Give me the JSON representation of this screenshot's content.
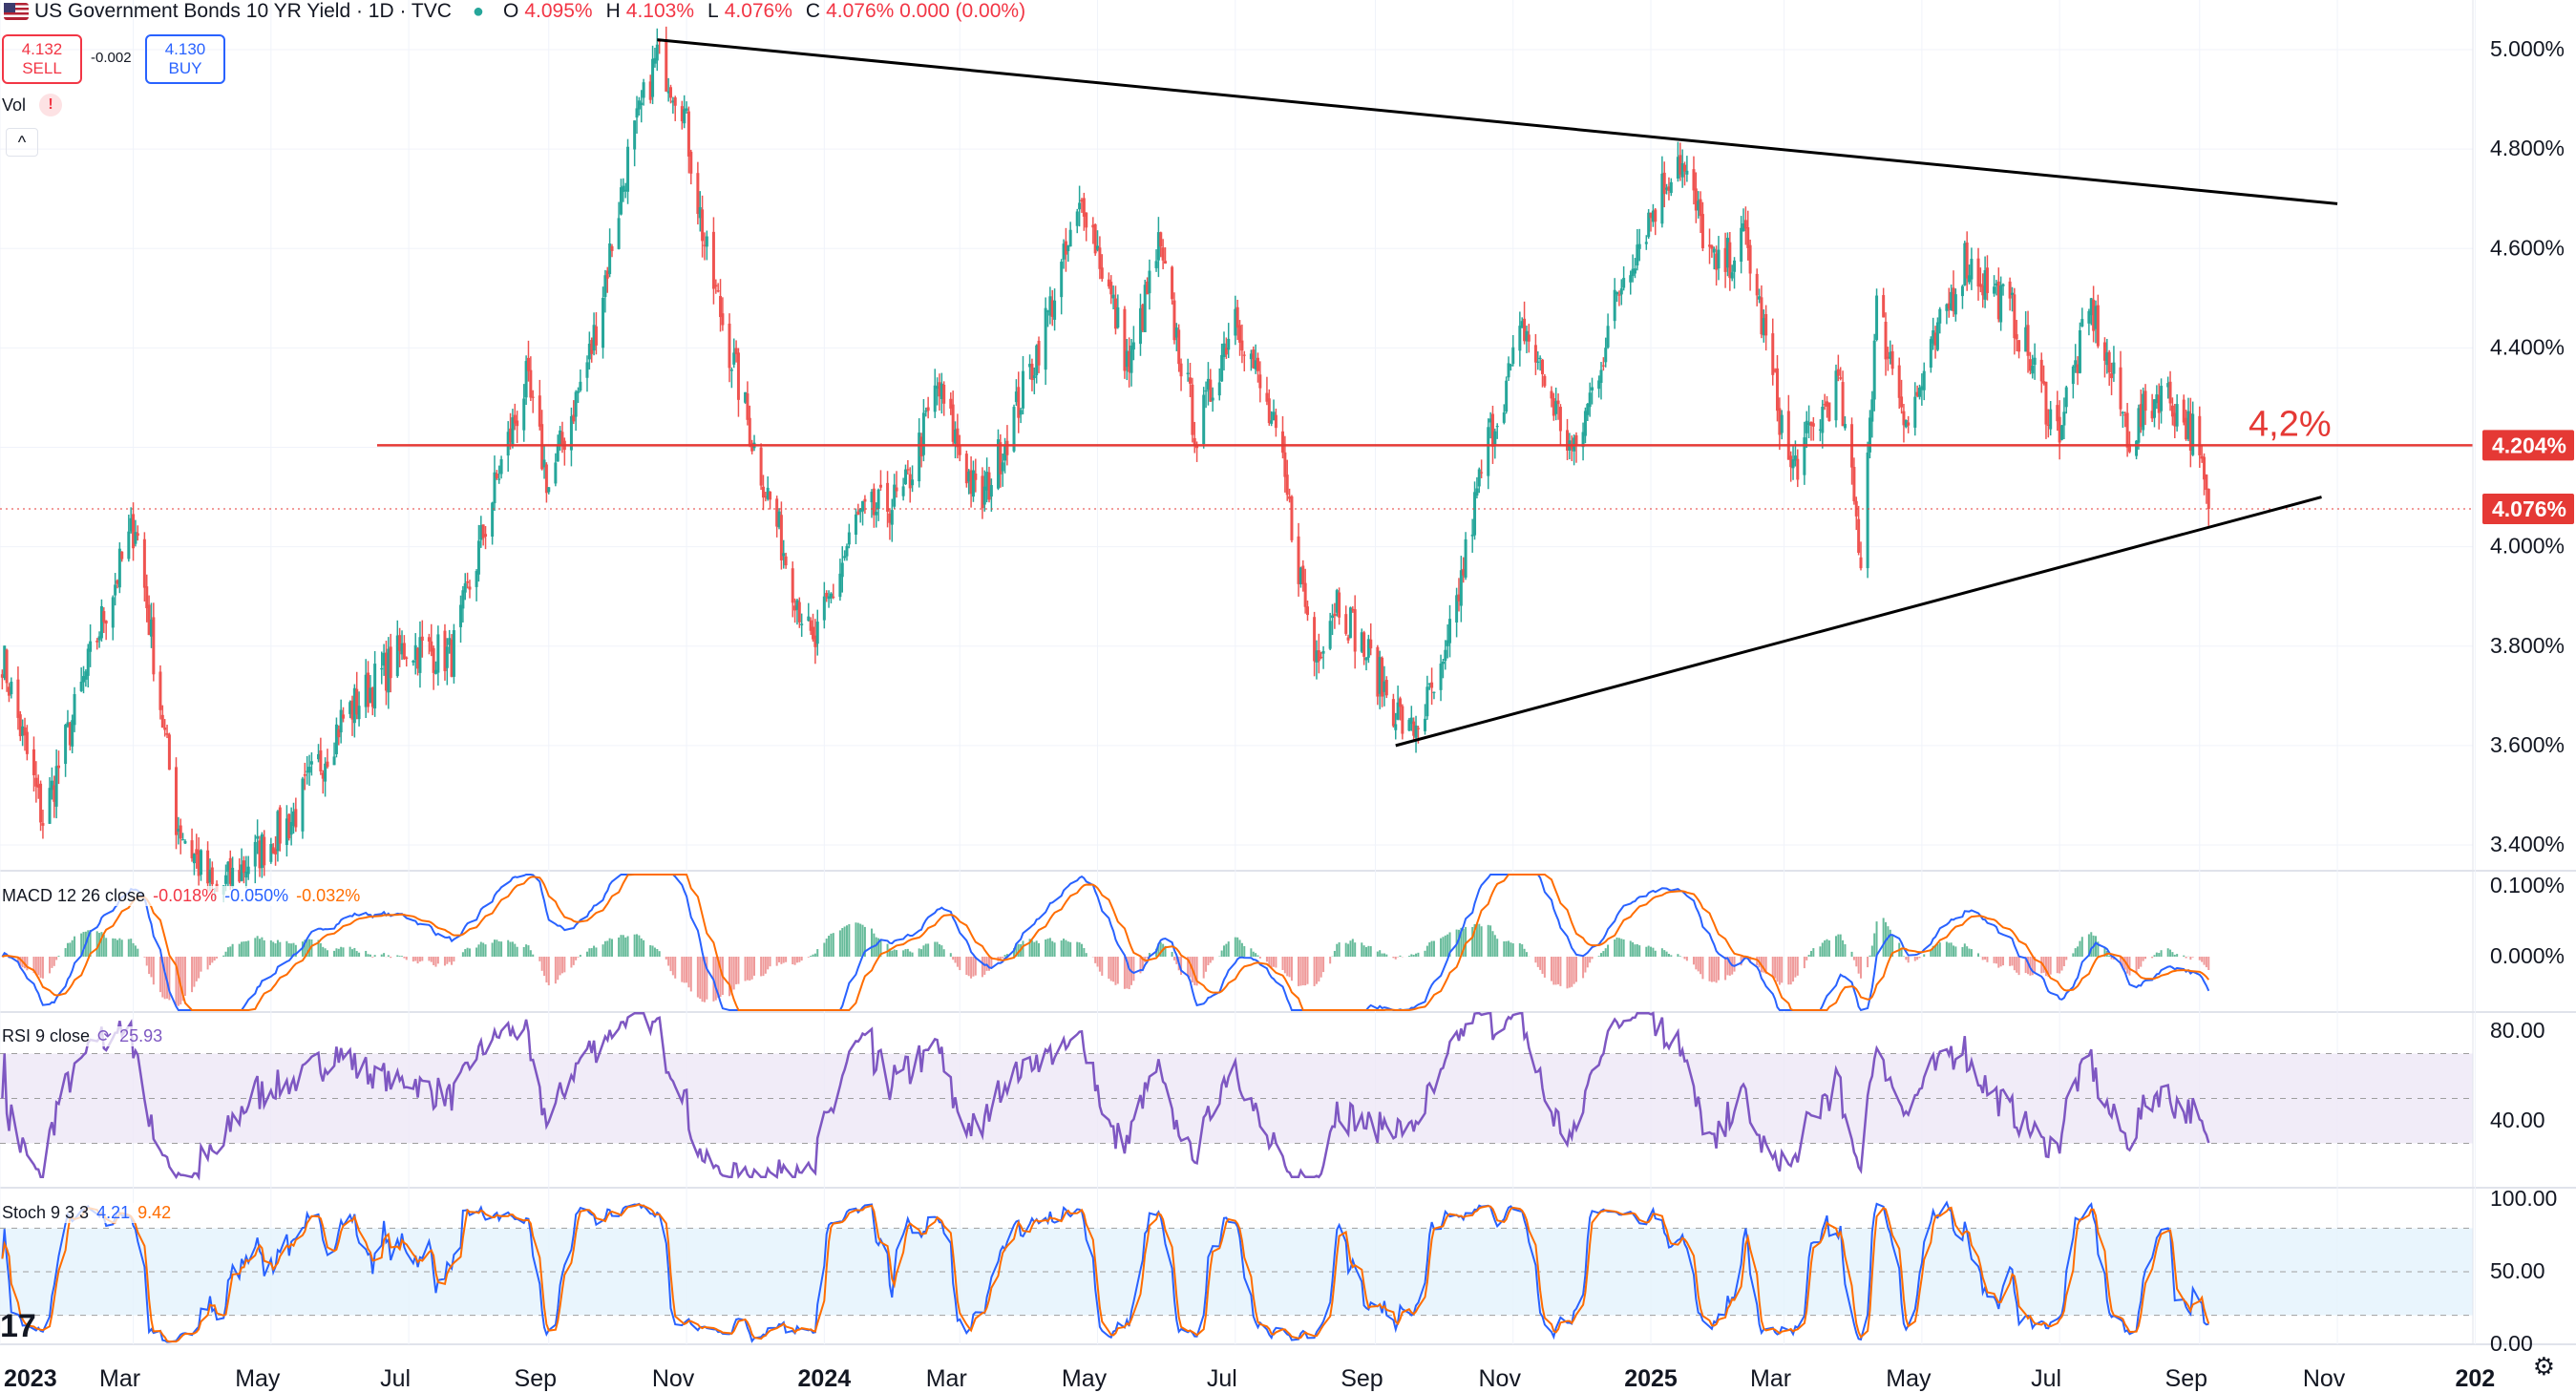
{
  "header": {
    "title": "US Government Bonds 10 YR Yield · 1D · TVC",
    "o_label": "O",
    "o_value": "4.095%",
    "h_label": "H",
    "h_value": "4.103%",
    "l_label": "L",
    "l_value": "4.076%",
    "c_label": "C",
    "c_value": "4.076% 0.000 (0.00%)"
  },
  "trade": {
    "sell_price": "4.132",
    "sell_label": "SELL",
    "spread": "-0.002",
    "buy_price": "4.130",
    "buy_label": "BUY"
  },
  "volume": {
    "label": "Vol",
    "warn": "!"
  },
  "collapse_icon": "chevron-up-icon",
  "macd": {
    "label": "MACD 12 26 close",
    "v1": "-0.018%",
    "v2": "-0.050%",
    "v3": "-0.032%"
  },
  "rsi": {
    "label": "RSI 9 close",
    "value": "25.93"
  },
  "stoch": {
    "label": "Stoch 9 3 3",
    "k": "4.21",
    "d": "9.42"
  },
  "colors": {
    "up": "#26a69a",
    "down": "#ef5350",
    "level": "#e53935",
    "trend": "#000000",
    "macd": "#2962ff",
    "signal": "#ff6d00",
    "rsi": "#7e57c2"
  },
  "chart_data": [
    {
      "type": "candlestick",
      "title": "US Government Bonds 10 YR Yield",
      "ylim": [
        3.3,
        5.05
      ],
      "y_ticks": [
        "5.000%",
        "4.800%",
        "4.600%",
        "4.400%",
        "4.200%",
        "4.000%",
        "3.800%",
        "3.600%",
        "3.400%"
      ],
      "x_ticks": [
        "2023",
        "Mar",
        "May",
        "Jul",
        "Sep",
        "Nov",
        "2024",
        "Mar",
        "May",
        "Jul",
        "Sep",
        "Nov",
        "2025",
        "Mar",
        "May",
        "Jul",
        "Sep",
        "Nov",
        "202"
      ],
      "x_range": [
        "2023-01-01",
        "2025-12-31"
      ],
      "close_anchors": [
        [
          "2023-01-01",
          3.8
        ],
        [
          "2023-01-20",
          3.45
        ],
        [
          "2023-02-15",
          3.85
        ],
        [
          "2023-03-02",
          4.05
        ],
        [
          "2023-03-20",
          3.45
        ],
        [
          "2023-04-06",
          3.3
        ],
        [
          "2023-05-10",
          3.45
        ],
        [
          "2023-06-01",
          3.65
        ],
        [
          "2023-06-30",
          3.8
        ],
        [
          "2023-07-20",
          3.78
        ],
        [
          "2023-08-10",
          4.15
        ],
        [
          "2023-08-22",
          4.33
        ],
        [
          "2023-09-01",
          4.12
        ],
        [
          "2023-09-20",
          4.4
        ],
        [
          "2023-10-06",
          4.78
        ],
        [
          "2023-10-19",
          4.99
        ],
        [
          "2023-10-30",
          4.9
        ],
        [
          "2023-11-10",
          4.58
        ],
        [
          "2023-12-01",
          4.2
        ],
        [
          "2023-12-27",
          3.79
        ],
        [
          "2024-01-15",
          4.05
        ],
        [
          "2024-02-05",
          4.1
        ],
        [
          "2024-02-20",
          4.32
        ],
        [
          "2024-03-10",
          4.08
        ],
        [
          "2024-04-01",
          4.35
        ],
        [
          "2024-04-25",
          4.7
        ],
        [
          "2024-05-15",
          4.36
        ],
        [
          "2024-05-28",
          4.6
        ],
        [
          "2024-06-14",
          4.22
        ],
        [
          "2024-07-01",
          4.48
        ],
        [
          "2024-07-20",
          4.2
        ],
        [
          "2024-08-05",
          3.78
        ],
        [
          "2024-08-15",
          3.9
        ],
        [
          "2024-09-16",
          3.62
        ],
        [
          "2024-10-01",
          3.74
        ],
        [
          "2024-10-20",
          4.2
        ],
        [
          "2024-11-06",
          4.44
        ],
        [
          "2024-11-28",
          4.18
        ],
        [
          "2024-12-20",
          4.55
        ],
        [
          "2025-01-13",
          4.79
        ],
        [
          "2025-01-30",
          4.55
        ],
        [
          "2025-02-12",
          4.62
        ],
        [
          "2025-03-04",
          4.15
        ],
        [
          "2025-03-25",
          4.33
        ],
        [
          "2025-04-04",
          3.98
        ],
        [
          "2025-04-11",
          4.48
        ],
        [
          "2025-04-25",
          4.25
        ],
        [
          "2025-05-20",
          4.58
        ],
        [
          "2025-06-10",
          4.47
        ],
        [
          "2025-06-30",
          4.23
        ],
        [
          "2025-07-15",
          4.48
        ],
        [
          "2025-08-01",
          4.22
        ],
        [
          "2025-08-15",
          4.32
        ],
        [
          "2025-08-29",
          4.23
        ],
        [
          "2025-09-05",
          4.076
        ]
      ],
      "annotations": {
        "level_value": 4.204,
        "level_label": "4,2%",
        "level_badge": "4.204%",
        "last_badge": "4.076%",
        "trend_upper": [
          [
            "2023-10-19",
            5.02
          ],
          [
            "2025-11-01",
            4.69
          ]
        ],
        "trend_lower": [
          [
            "2024-09-10",
            3.6
          ],
          [
            "2025-10-25",
            4.1
          ]
        ]
      }
    },
    {
      "type": "line",
      "title": "MACD 12 26 close",
      "y_ticks": [
        "0.100%",
        "0.000%"
      ],
      "series": [
        {
          "name": "MACD"
        },
        {
          "name": "Signal"
        },
        {
          "name": "Histogram"
        }
      ]
    },
    {
      "type": "line",
      "title": "RSI 9 close",
      "y_ticks": [
        "80.00",
        "40.00"
      ],
      "band": [
        30,
        70
      ]
    },
    {
      "type": "line",
      "title": "Stoch 9 3 3",
      "y_ticks": [
        "100.00",
        "50.00",
        "0.00"
      ],
      "band": [
        20,
        80
      ]
    }
  ],
  "brand": "17",
  "settings_icon": "gear-icon"
}
